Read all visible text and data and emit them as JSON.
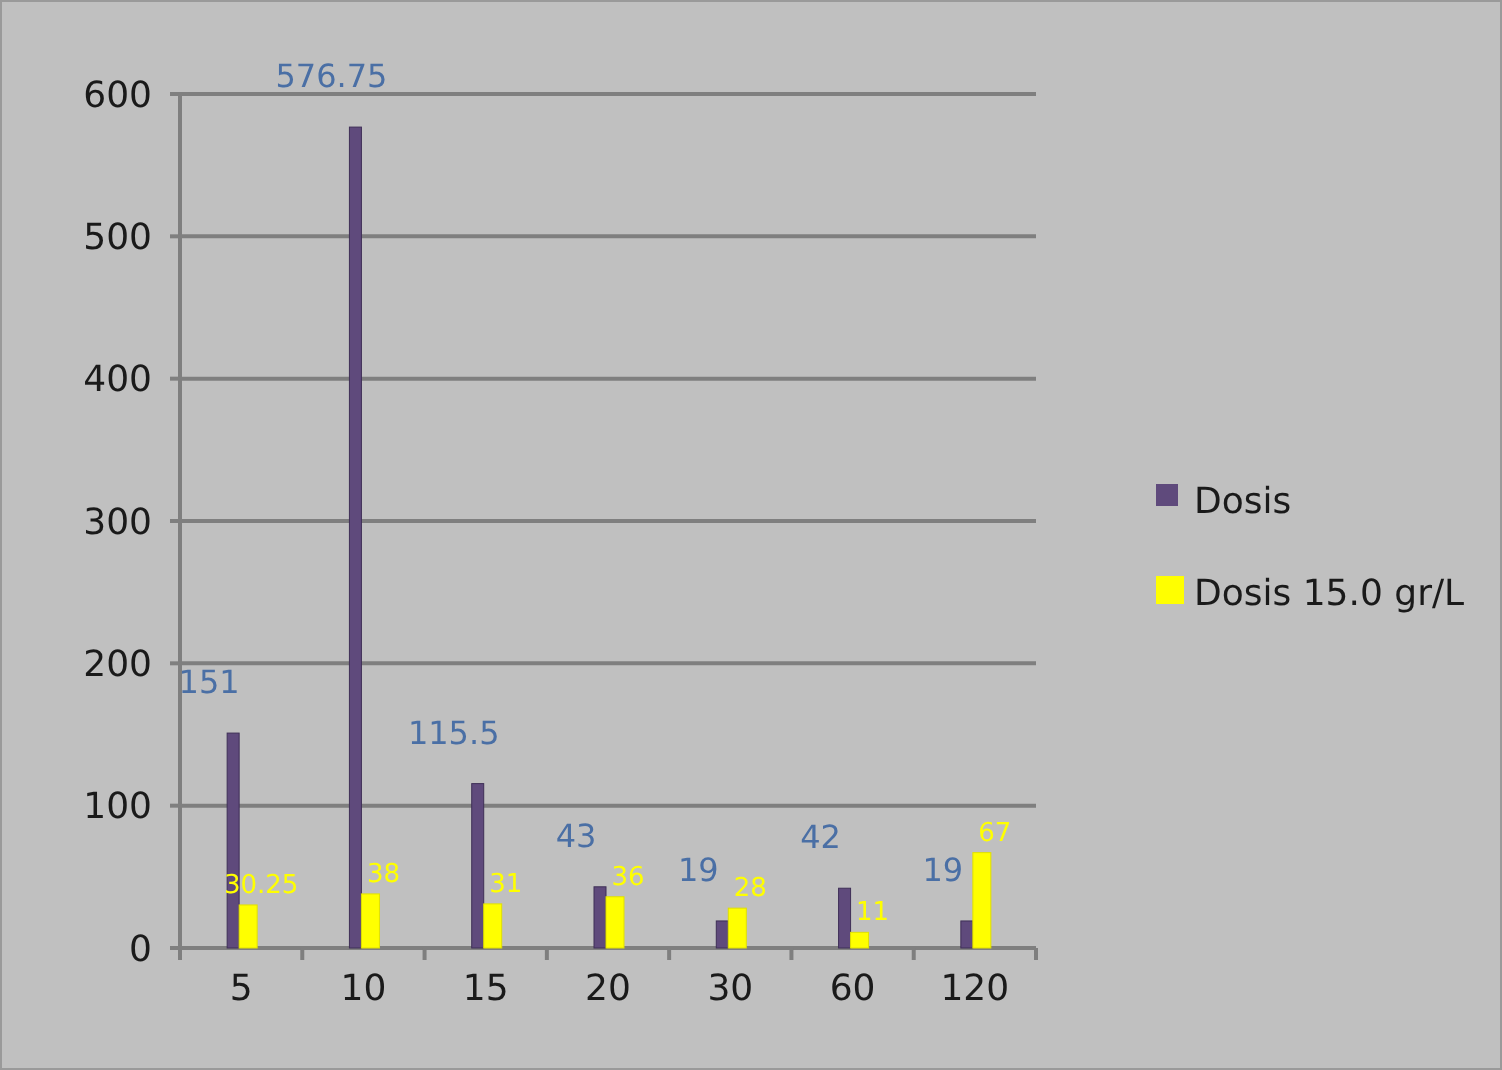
{
  "chart_data": {
    "type": "bar",
    "categories": [
      "5",
      "10",
      "15",
      "20",
      "30",
      "60",
      "120"
    ],
    "series": [
      {
        "name": "Dosis",
        "color": "#5f4a7c",
        "values": [
          151,
          576.75,
          115.5,
          43,
          19,
          42,
          19
        ]
      },
      {
        "name": "Dosis 15.0 gr/L",
        "color": "#ffff00",
        "values": [
          30.25,
          38,
          31,
          36,
          28,
          11,
          67
        ]
      }
    ],
    "ylim": [
      0,
      600
    ],
    "yticks": [
      0,
      100,
      200,
      300,
      400,
      500,
      600
    ],
    "grid": "y",
    "legend": "right",
    "data_labels": true
  }
}
